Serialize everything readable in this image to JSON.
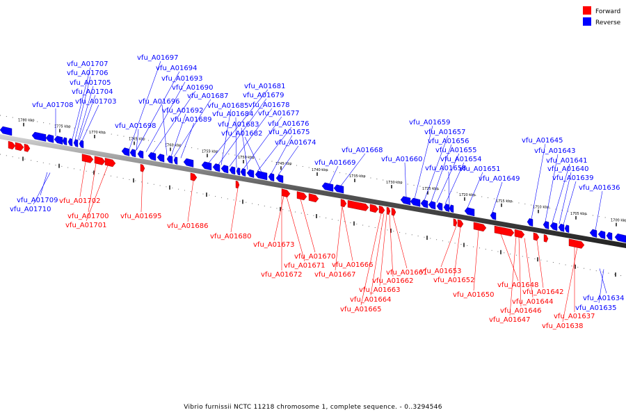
{
  "legend": {
    "forward_label": "Forward",
    "reverse_label": "Reverse",
    "forward_color": "#ff0000",
    "reverse_color": "#0000ff"
  },
  "caption": "Vibrio furnissii NCTC 11218 chromosome 1, complete sequence. - 0..3294546",
  "scale_labels": [
    "1780 kbp",
    "1775 kbp",
    "1770 kbp",
    "1765 kbp",
    "1760 kbp",
    "1755 kbp",
    "1750 kbp",
    "1745 kbp",
    "1740 kbp",
    "1735 kbp",
    "1730 kbp",
    "1725 kbp",
    "1720 kbp",
    "1715 kbp",
    "1710 kbp",
    "1705 kbp",
    "1700 kbp"
  ],
  "reverse_genes": [
    "vfu_A01707",
    "vfu_A01706",
    "vfu_A01705",
    "vfu_A01704",
    "vfu_A01703",
    "vfu_A01708",
    "vfu_A01697",
    "vfu_A01694",
    "vfu_A01693",
    "vfu_A01690",
    "vfu_A01687",
    "vfu_A01696",
    "vfu_A01692",
    "vfu_A01689",
    "vfu_A01698",
    "vfu_A01681",
    "vfu_A01679",
    "vfu_A01685",
    "vfu_A01678",
    "vfu_A01684",
    "vfu_A01677",
    "vfu_A01683",
    "vfu_A01676",
    "vfu_A01682",
    "vfu_A01675",
    "vfu_A01674",
    "vfu_A01668",
    "vfu_A01669",
    "vfu_A01659",
    "vfu_A01657",
    "vfu_A01656",
    "vfu_A01655",
    "vfu_A01660",
    "vfu_A01654",
    "vfu_A01658",
    "vfu_A01651",
    "vfu_A01649",
    "vfu_A01645",
    "vfu_A01643",
    "vfu_A01641",
    "vfu_A01640",
    "vfu_A01639",
    "vfu_A01636",
    "vfu_A01709",
    "vfu_A01710",
    "vfu_A01634",
    "vfu_A01635"
  ],
  "forward_genes": [
    "vfu_A01702",
    "vfu_A01700",
    "vfu_A01701",
    "vfu_A01695",
    "vfu_A01686",
    "vfu_A01680",
    "vfu_A01673",
    "vfu_A01670",
    "vfu_A01671",
    "vfu_A01672",
    "vfu_A01666",
    "vfu_A01667",
    "vfu_A01661",
    "vfu_A01662",
    "vfu_A01663",
    "vfu_A01664",
    "vfu_A01665",
    "vfu_A01653",
    "vfu_A01652",
    "vfu_A01650",
    "vfu_A01648",
    "vfu_A01642",
    "vfu_A01644",
    "vfu_A01646",
    "vfu_A01647",
    "vfu_A01637",
    "vfu_A01638"
  ]
}
